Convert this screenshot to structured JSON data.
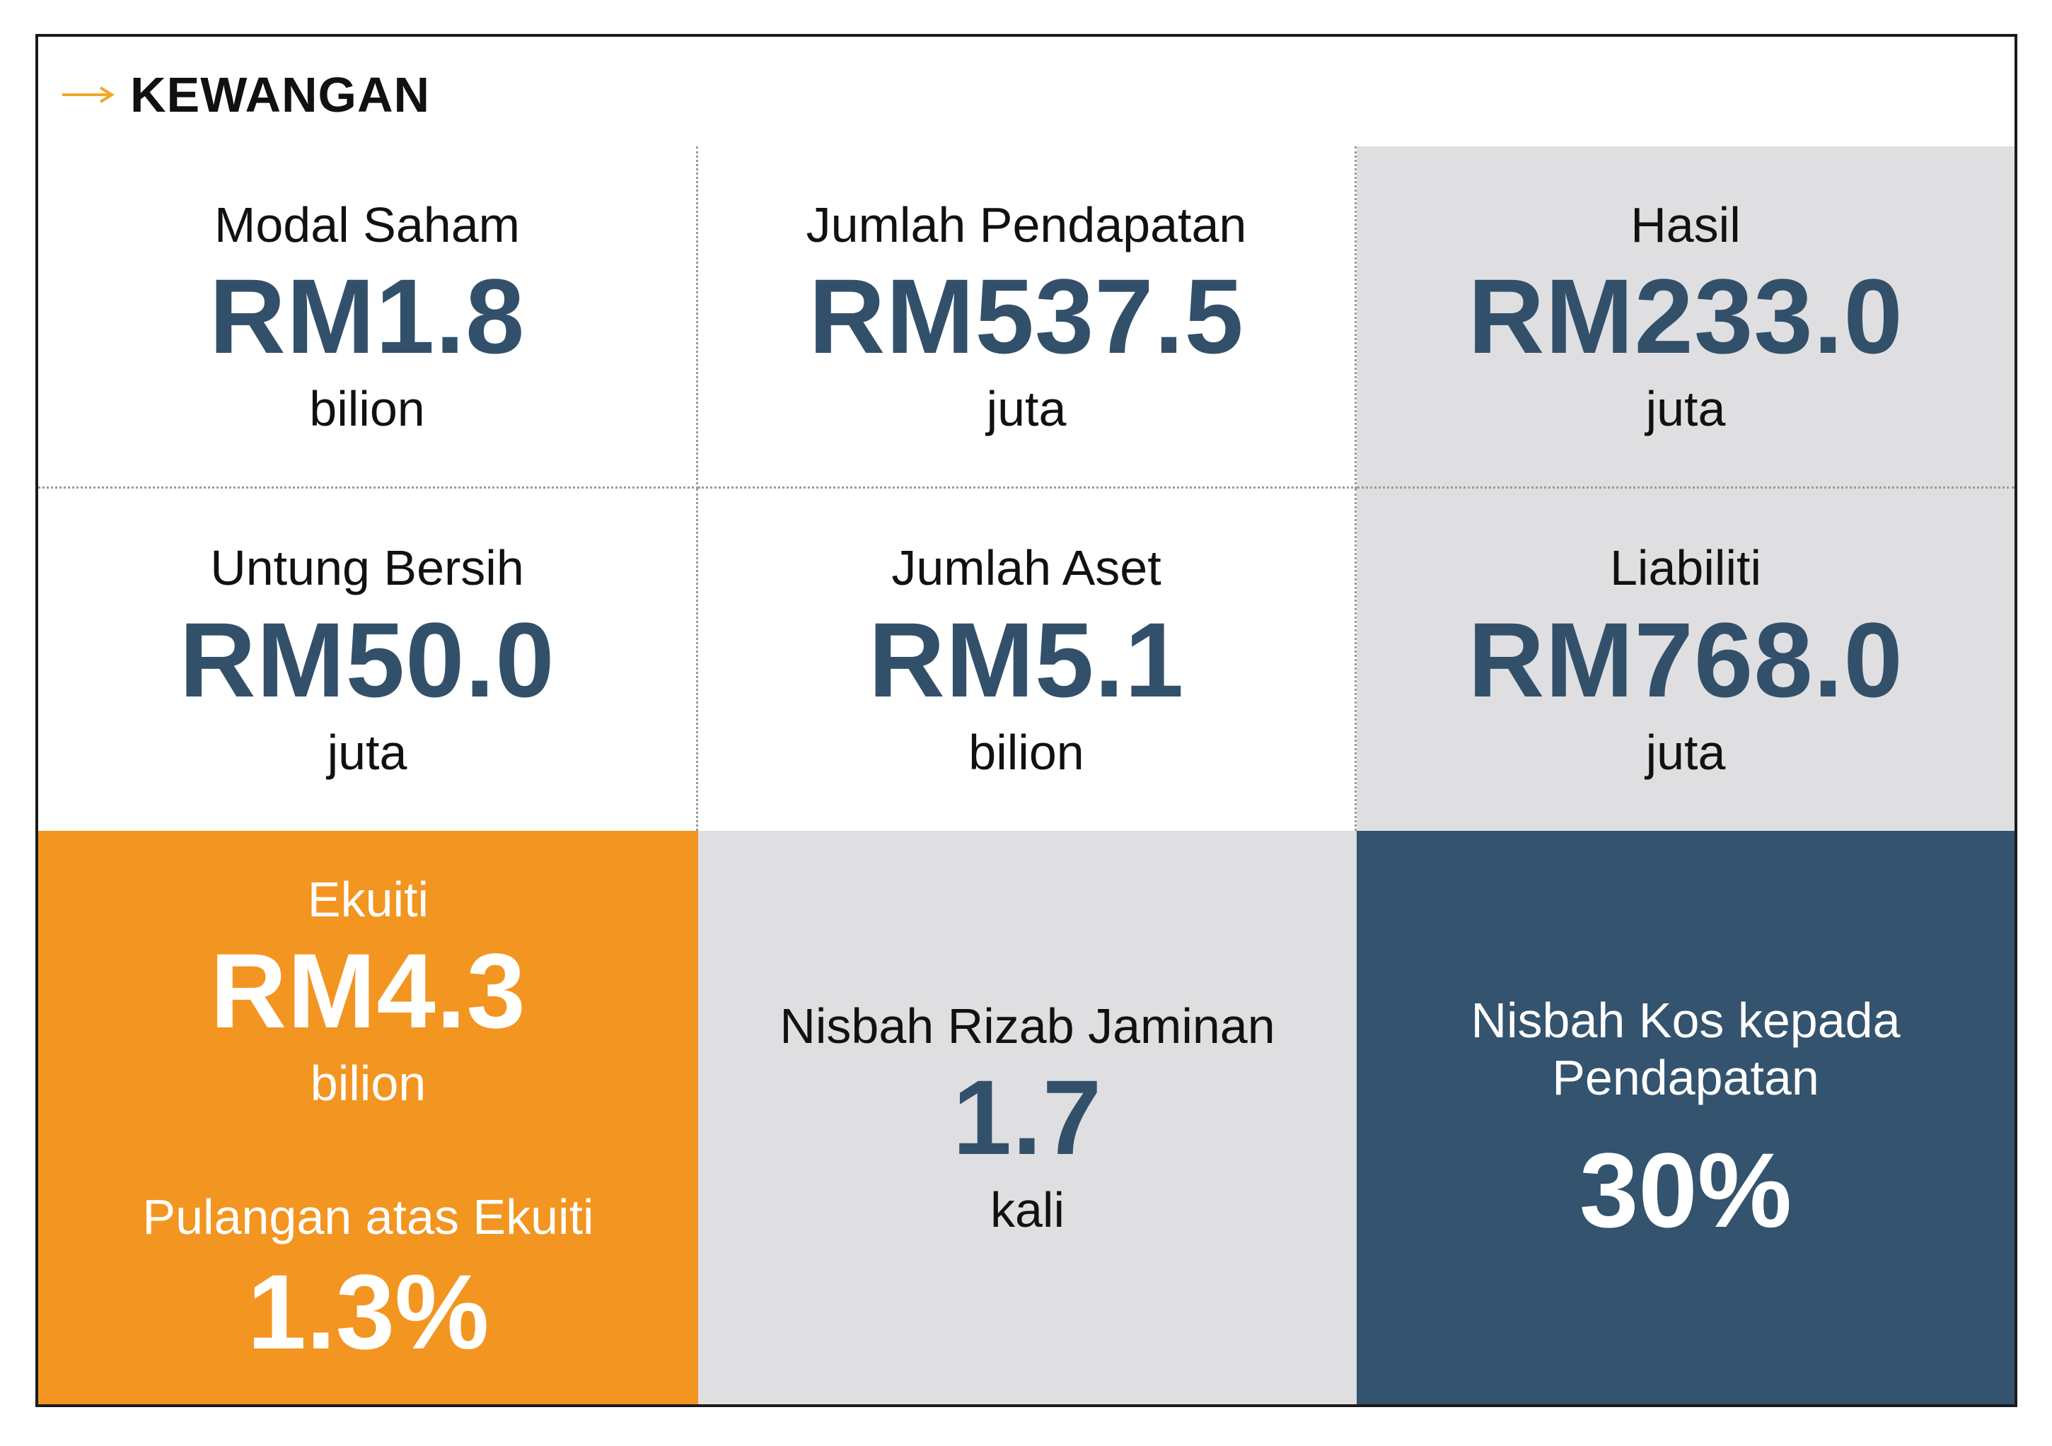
{
  "header": {
    "title": "KEWANGAN",
    "arrow_icon": "right-arrow-icon",
    "accent": "#f5a623"
  },
  "colors": {
    "navy": "#33536e",
    "orange": "#f39521",
    "grey": "#dfdfe1",
    "value_blue": "#33506b"
  },
  "tiles": {
    "modal_saham": {
      "label": "Modal Saham",
      "value": "RM1.8",
      "unit": "bilion"
    },
    "jumlah_pendapatan": {
      "label": "Jumlah Pendapatan",
      "value": "RM537.5",
      "unit": "juta"
    },
    "hasil": {
      "label": "Hasil",
      "value": "RM233.0",
      "unit": "juta"
    },
    "untung_bersih": {
      "label": "Untung Bersih",
      "value": "RM50.0",
      "unit": "juta"
    },
    "jumlah_aset": {
      "label": "Jumlah Aset",
      "value": "RM5.1",
      "unit": "bilion"
    },
    "liabiliti": {
      "label": "Liabiliti",
      "value": "RM768.0",
      "unit": "juta"
    },
    "ekuiti": {
      "label": "Ekuiti",
      "value": "RM4.3",
      "unit": "bilion",
      "roe_label": "Pulangan atas Ekuiti",
      "roe_value": "1.3%"
    },
    "nisbah_rizab": {
      "label": "Nisbah Rizab Jaminan",
      "value": "1.7",
      "unit": "kali"
    },
    "nisbah_kos": {
      "label_line1": "Nisbah Kos kepada",
      "label_line2": "Pendapatan",
      "value": "30%"
    }
  }
}
